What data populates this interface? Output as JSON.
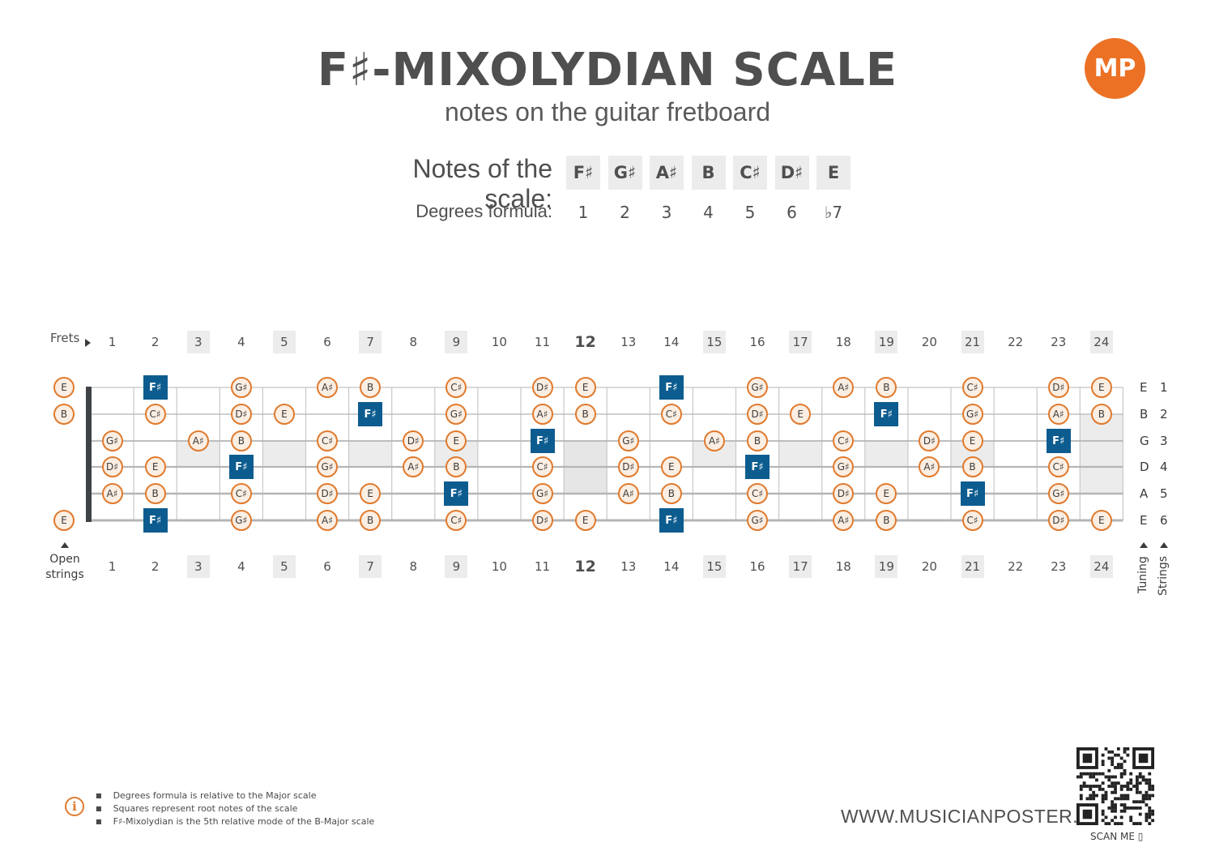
{
  "header": {
    "title": "F♯-MIXOLYDIAN SCALE",
    "subtitle": "notes on the guitar fretboard",
    "logo_text": "MP"
  },
  "scale": {
    "notes_label": "Notes of the scale:",
    "degrees_label": "Degrees formula:",
    "notes": [
      "F♯",
      "G♯",
      "A♯",
      "B",
      "C♯",
      "D♯",
      "E"
    ],
    "degrees": [
      "1",
      "2",
      "3",
      "4",
      "5",
      "6",
      "♭7"
    ]
  },
  "fretboard": {
    "frets_label": "Frets",
    "fret_numbers": [
      "1",
      "2",
      "3",
      "4",
      "5",
      "6",
      "7",
      "8",
      "9",
      "10",
      "11",
      "12",
      "13",
      "14",
      "15",
      "16",
      "17",
      "18",
      "19",
      "20",
      "21",
      "22",
      "23",
      "24"
    ],
    "marked_frets": [
      3,
      5,
      7,
      9,
      12,
      15,
      17,
      19,
      21,
      24
    ],
    "open_strings_label": "Open\nstrings",
    "tuning_label": "Tuning",
    "strings_label": "Strings",
    "tuning": [
      "E",
      "B",
      "G",
      "D",
      "A",
      "E"
    ],
    "string_numbers": [
      "1",
      "2",
      "3",
      "4",
      "5",
      "6"
    ],
    "strings": [
      {
        "open": "E",
        "notes": {
          "2": "F♯",
          "4": "G♯",
          "6": "A♯",
          "7": "B",
          "9": "C♯",
          "11": "D♯",
          "12": "E",
          "14": "F♯",
          "16": "G♯",
          "18": "A♯",
          "19": "B",
          "21": "C♯",
          "23": "D♯",
          "24": "E"
        }
      },
      {
        "open": "B",
        "notes": {
          "2": "C♯",
          "4": "D♯",
          "5": "E",
          "7": "F♯",
          "9": "G♯",
          "11": "A♯",
          "12": "B",
          "14": "C♯",
          "16": "D♯",
          "17": "E",
          "19": "F♯",
          "21": "G♯",
          "23": "A♯",
          "24": "B"
        }
      },
      {
        "open": "",
        "notes": {
          "1": "G♯",
          "3": "A♯",
          "4": "B",
          "6": "C♯",
          "8": "D♯",
          "9": "E",
          "11": "F♯",
          "13": "G♯",
          "15": "A♯",
          "16": "B",
          "18": "C♯",
          "20": "D♯",
          "21": "E",
          "23": "F♯"
        }
      },
      {
        "open": "",
        "notes": {
          "1": "D♯",
          "2": "E",
          "4": "F♯",
          "6": "G♯",
          "8": "A♯",
          "9": "B",
          "11": "C♯",
          "13": "D♯",
          "14": "E",
          "16": "F♯",
          "18": "G♯",
          "20": "A♯",
          "21": "B",
          "23": "C♯"
        }
      },
      {
        "open": "",
        "notes": {
          "1": "A♯",
          "2": "B",
          "4": "C♯",
          "6": "D♯",
          "7": "E",
          "9": "F♯",
          "11": "G♯",
          "13": "A♯",
          "14": "B",
          "16": "C♯",
          "18": "D♯",
          "19": "E",
          "21": "F♯",
          "23": "G♯"
        }
      },
      {
        "open": "E",
        "notes": {
          "2": "F♯",
          "4": "G♯",
          "6": "A♯",
          "7": "B",
          "9": "C♯",
          "11": "D♯",
          "12": "E",
          "14": "F♯",
          "16": "G♯",
          "18": "A♯",
          "19": "B",
          "21": "C♯",
          "23": "D♯",
          "24": "E"
        }
      }
    ],
    "root_note": "F♯"
  },
  "footer": {
    "notes": [
      "Degrees formula is relative to the Major scale",
      "Squares represent root notes of the scale",
      "F♯-Mixolydian is the 5th relative mode of the B-Major scale"
    ],
    "website": "WWW.MUSICIANPOSTER.COM",
    "scan_label": "SCAN ME"
  },
  "colors": {
    "accent_orange": "#e07a2d",
    "root_blue": "#0d5c8f",
    "marker_gray": "#ececec"
  }
}
